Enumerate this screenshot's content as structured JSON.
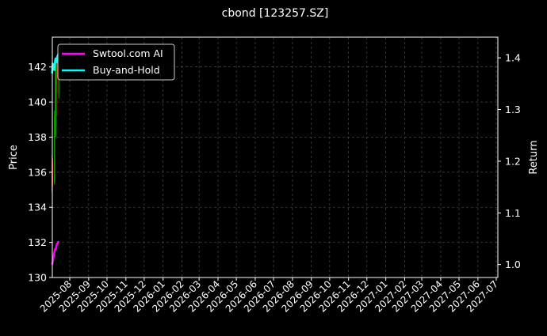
{
  "chart_data": {
    "type": "line",
    "title": "cbond [123257.SZ]",
    "ylabel_left": "Price",
    "ylabel_right": "Return",
    "ylim_left": [
      130,
      143.7
    ],
    "ylim_right": [
      0.975,
      1.44
    ],
    "yticks_left": [
      "130",
      "132",
      "134",
      "136",
      "138",
      "140",
      "142"
    ],
    "yticks_right": [
      "1.0",
      "1.1",
      "1.2",
      "1.3",
      "1.4"
    ],
    "xticks": [
      "2025-08",
      "2025-09",
      "2025-10",
      "2025-11",
      "2025-12",
      "2026-01",
      "2026-02",
      "2026-03",
      "2026-04",
      "2026-05",
      "2026-06",
      "2026-07",
      "2026-08",
      "2026-09",
      "2026-10",
      "2026-11",
      "2026-12",
      "2027-01",
      "2027-02",
      "2027-03",
      "2027-04",
      "2027-05",
      "2027-06",
      "2027-07"
    ],
    "grid": true,
    "legend_position": "top-left",
    "candles": [
      {
        "date": "2025-07-03",
        "open": 135.0,
        "close": 136.5,
        "high": 137.0,
        "low": 134.8
      },
      {
        "date": "2025-07-04",
        "open": 136.5,
        "close": 135.4,
        "high": 136.8,
        "low": 135.2
      },
      {
        "date": "2025-07-07",
        "open": 135.4,
        "close": 139.2,
        "high": 139.5,
        "low": 135.3
      },
      {
        "date": "2025-07-08",
        "open": 139.2,
        "close": 138.2,
        "high": 141.8,
        "low": 138.0
      },
      {
        "date": "2025-07-09",
        "open": 138.2,
        "close": 141.5,
        "high": 142.2,
        "low": 138.0
      },
      {
        "date": "2025-07-10",
        "open": 141.5,
        "close": 142.3,
        "high": 142.6,
        "low": 141.0
      },
      {
        "date": "2025-07-11",
        "open": 142.3,
        "close": 140.5,
        "high": 142.5,
        "low": 139.2
      },
      {
        "date": "2025-07-14",
        "open": 140.5,
        "close": 142.0,
        "high": 142.8,
        "low": 140.2
      }
    ],
    "series": [
      {
        "name": "Swtool.com AI",
        "color": "#ff00ff",
        "x": [
          "2025-07-03",
          "2025-07-04",
          "2025-07-07",
          "2025-07-08",
          "2025-07-09",
          "2025-07-10",
          "2025-07-11",
          "2025-07-14"
        ],
        "values": [
          1.0,
          1.005,
          1.025,
          1.03,
          1.03,
          1.035,
          1.04,
          1.045
        ]
      },
      {
        "name": "Buy-and-Hold",
        "color": "#00ffff",
        "x": [
          "2025-07-03",
          "2025-07-04",
          "2025-07-07",
          "2025-07-08",
          "2025-07-09",
          "2025-07-10",
          "2025-07-11",
          "2025-07-14"
        ],
        "values": [
          1.37,
          1.39,
          1.375,
          1.395,
          1.4,
          1.39,
          1.4,
          1.41
        ]
      }
    ],
    "up_color": "#00aa00",
    "down_color": "#ff0000"
  }
}
